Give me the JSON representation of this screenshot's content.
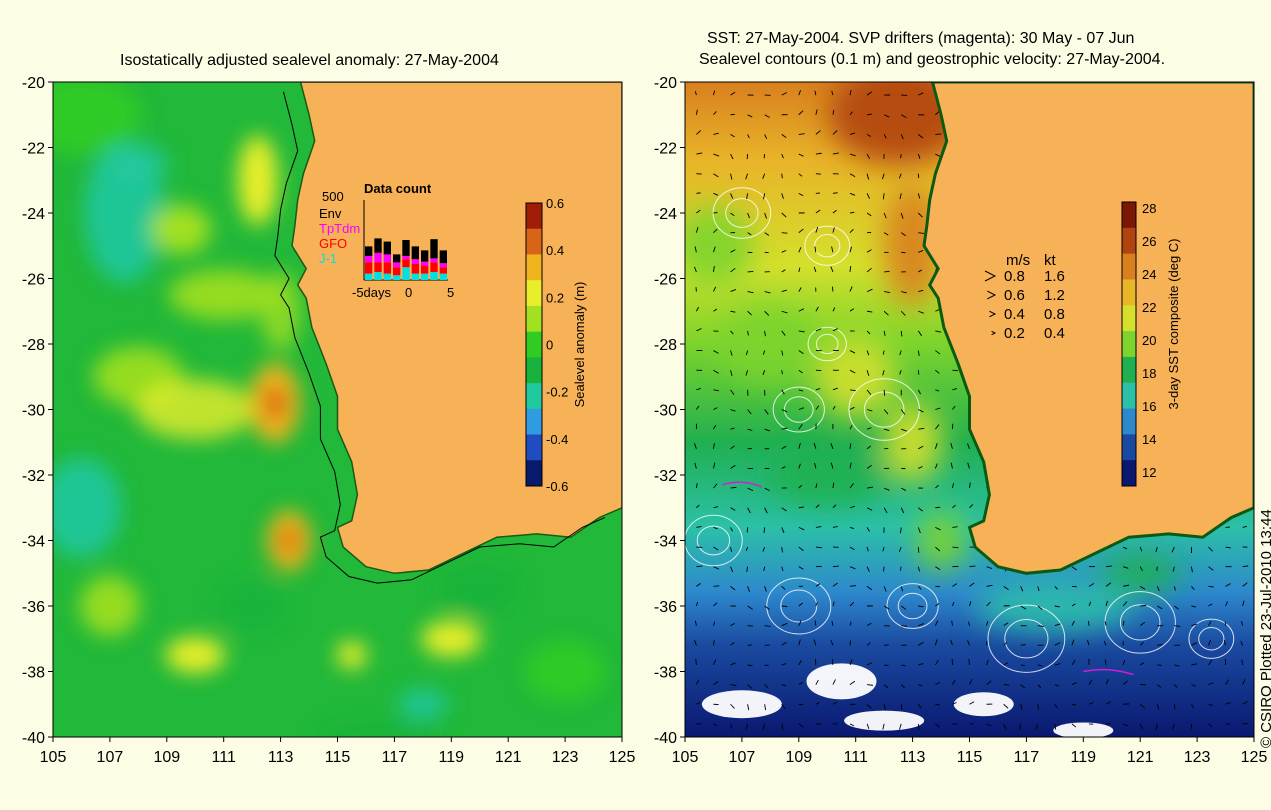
{
  "left_panel": {
    "title": "Isostatically adjusted sealevel anomaly: 27-May-2004",
    "x_ticks": [
      "105",
      "107",
      "109",
      "111",
      "113",
      "115",
      "117",
      "119",
      "121",
      "123",
      "125"
    ],
    "y_ticks": [
      "-20",
      "-22",
      "-24",
      "-26",
      "-28",
      "-30",
      "-32",
      "-34",
      "-36",
      "-38",
      "-40"
    ],
    "colorbar": {
      "label": "Sealevel anomaly (m)",
      "ticks": [
        "0.6",
        "0.4",
        "0.2",
        "0",
        "-0.2",
        "-0.4",
        "-0.6"
      ]
    },
    "inset": {
      "title": "Data count",
      "y_max": "500",
      "legend": [
        {
          "label": "Env",
          "color": "#000000"
        },
        {
          "label": "TpTdm",
          "color": "#ff00ff"
        },
        {
          "label": "GFO",
          "color": "#ff0000"
        },
        {
          "label": "J-1",
          "color": "#00e0e0"
        }
      ],
      "x_labels": [
        "-5days",
        "0",
        "5"
      ],
      "bars": [
        {
          "env": 0.12,
          "tp": 0.08,
          "gfo": 0.14,
          "j1": 0.08
        },
        {
          "env": 0.18,
          "tp": 0.12,
          "gfo": 0.12,
          "j1": 0.1
        },
        {
          "env": 0.16,
          "tp": 0.1,
          "gfo": 0.14,
          "j1": 0.08
        },
        {
          "env": 0.1,
          "tp": 0.06,
          "gfo": 0.1,
          "j1": 0.06
        },
        {
          "env": 0.2,
          "tp": 0.04,
          "gfo": 0.1,
          "j1": 0.16
        },
        {
          "env": 0.16,
          "tp": 0.06,
          "gfo": 0.12,
          "j1": 0.08
        },
        {
          "env": 0.14,
          "tp": 0.05,
          "gfo": 0.1,
          "j1": 0.08
        },
        {
          "env": 0.24,
          "tp": 0.05,
          "gfo": 0.12,
          "j1": 0.1
        },
        {
          "env": 0.16,
          "tp": 0.05,
          "gfo": 0.08,
          "j1": 0.08
        }
      ]
    }
  },
  "right_panel": {
    "title_line1": "SST: 27-May-2004. SVP drifters (magenta): 30 May - 07 Jun",
    "title_line2": "Sealevel contours (0.1 m) and geostrophic velocity: 27-May-2004.",
    "x_ticks": [
      "105",
      "107",
      "109",
      "111",
      "113",
      "115",
      "117",
      "119",
      "121",
      "123",
      "125"
    ],
    "y_ticks": [
      "-20",
      "-22",
      "-24",
      "-26",
      "-28",
      "-30",
      "-32",
      "-34",
      "-36",
      "-38",
      "-40"
    ],
    "colorbar": {
      "label": "3-day SST composite (deg C)",
      "ticks": [
        "28",
        "26",
        "24",
        "22",
        "20",
        "18",
        "16",
        "14",
        "12"
      ]
    },
    "speed_legend": {
      "header_ms": "m/s",
      "header_kt": "kt",
      "rows": [
        {
          "ms": "0.8",
          "kt": "1.6"
        },
        {
          "ms": "0.6",
          "kt": "1.2"
        },
        {
          "ms": "0.4",
          "kt": "0.8"
        },
        {
          "ms": "0.2",
          "kt": "0.4"
        }
      ]
    }
  },
  "credit": "© CSIRO Plotted 23-Jul-2010 13:44",
  "colors": {
    "land": "#f7b157",
    "background": "#fdfde6",
    "ssh_scale": [
      "#081a6b",
      "#1f4cc0",
      "#2f9be0",
      "#20c8a0",
      "#17b33c",
      "#31cc22",
      "#a2e020",
      "#e8ee2a",
      "#f0b41e",
      "#d86418",
      "#a01e08"
    ],
    "sst_scale": [
      "#0a1870",
      "#1a4aa0",
      "#2d88cc",
      "#2cc0a8",
      "#20b050",
      "#7cd42c",
      "#d4e02c",
      "#e8b428",
      "#d8801e",
      "#b04410",
      "#7a1808"
    ]
  }
}
